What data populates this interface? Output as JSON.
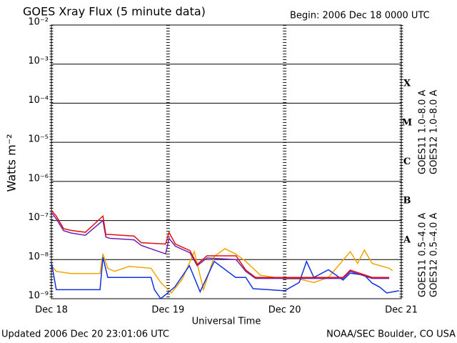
{
  "chart_data": {
    "type": "line",
    "title": "GOES Xray Flux (5 minute data)",
    "begin": "Begin:  2006 Dec 18 0000 UTC",
    "xlabel": "Universal Time",
    "ylabel": "Watts m⁻²",
    "updated": "Updated 2006 Dec 20 23:01:06 UTC",
    "source": "NOAA/SEC Boulder, CO USA",
    "log_y": true,
    "grid": true,
    "xlim": [
      0,
      72
    ],
    "xticks": [
      {
        "value": 0,
        "label": "Dec 18"
      },
      {
        "value": 24,
        "label": "Dec 19"
      },
      {
        "value": 48,
        "label": "Dec 20"
      },
      {
        "value": 72,
        "label": "Dec 21"
      }
    ],
    "ylim": [
      1e-09,
      0.01
    ],
    "yticks": [
      {
        "value": 1e-09,
        "label": "10⁻⁹"
      },
      {
        "value": 1e-08,
        "label": "10⁻⁸"
      },
      {
        "value": 1e-07,
        "label": "10⁻⁷"
      },
      {
        "value": 1e-06,
        "label": "10⁻⁶"
      },
      {
        "value": 1e-05,
        "label": "10⁻⁵"
      },
      {
        "value": 0.0001,
        "label": "10⁻⁴"
      },
      {
        "value": 0.001,
        "label": "10⁻³"
      },
      {
        "value": 0.01,
        "label": "10⁻²"
      }
    ],
    "flare_classes": [
      "X",
      "M",
      "C",
      "B",
      "A"
    ],
    "series": [
      {
        "name": "GOES11 0.5–4.0 A",
        "color": "#f5a400",
        "x": [
          0,
          1,
          4,
          10,
          10.6,
          11.6,
          13,
          16,
          20.5,
          22.5,
          24.7,
          26.9,
          29.4,
          31.3,
          33.5,
          35.7,
          37.9,
          40,
          43,
          48,
          51,
          54,
          57,
          61.5,
          63,
          64.4,
          66,
          69.5,
          70.2
        ],
        "values": [
          7e-09,
          5e-09,
          4.4e-09,
          4.4e-09,
          1.4e-08,
          6e-09,
          5e-09,
          6.7e-09,
          6e-09,
          2.6e-09,
          1.4e-09,
          3.1e-09,
          1.6e-08,
          1.7e-09,
          1.2e-08,
          1.9e-08,
          1.4e-08,
          9e-09,
          4e-09,
          3.2e-09,
          3.2e-09,
          2.6e-09,
          3.5e-09,
          1.6e-08,
          8e-09,
          1.75e-08,
          8e-09,
          6e-09,
          5.2e-09
        ]
      },
      {
        "name": "GOES12 0.5–4.0 A",
        "color": "#1030e0",
        "x": [
          0,
          1,
          10,
          10.6,
          11.6,
          20.5,
          21.2,
          22.5,
          25.4,
          28.4,
          30.6,
          33.5,
          37.9,
          40,
          41.5,
          48,
          51,
          52.5,
          54,
          57,
          60,
          61.5,
          64.4,
          66,
          67.5,
          69,
          71.5
        ],
        "values": [
          8.5e-09,
          1.7e-09,
          1.7e-09,
          1.15e-08,
          3.5e-09,
          3.5e-09,
          1.7e-09,
          1e-09,
          2e-09,
          7e-09,
          1.5e-09,
          9e-09,
          3.5e-09,
          3.5e-09,
          1.8e-09,
          1.6e-09,
          2.6e-09,
          9e-09,
          3.5e-09,
          5.5e-09,
          3e-09,
          4.5e-09,
          4e-09,
          2.5e-09,
          2e-09,
          1.4e-09,
          1.6e-09
        ]
      },
      {
        "name": "GOES11 1.0–8.0 A",
        "color": "#7020b0",
        "x": [
          0,
          1,
          2.5,
          4,
          7,
          10.6,
          11.2,
          12,
          17,
          18.5,
          23.5,
          24.2,
          25.5,
          28.5,
          30,
          32,
          38,
          40,
          42,
          60,
          61.5,
          66,
          69.5
        ],
        "values": [
          1.6e-07,
          1.1e-07,
          5.5e-08,
          4.8e-08,
          4.2e-08,
          1e-07,
          3.8e-08,
          3.5e-08,
          3.2e-08,
          2.3e-08,
          1.4e-08,
          3.5e-08,
          2.2e-08,
          1.5e-08,
          7e-09,
          1.1e-08,
          1e-08,
          5e-09,
          3.3e-09,
          3.3e-09,
          5e-09,
          3.3e-09,
          3.3e-09
        ]
      },
      {
        "name": "GOES12 1.0–8.0 A",
        "color": "#e01010",
        "x": [
          0,
          1,
          2.5,
          4,
          7,
          10.6,
          11.2,
          12,
          17,
          18.5,
          23.5,
          24.2,
          25.5,
          28.5,
          30,
          32,
          38,
          40,
          42,
          60,
          61.5,
          66,
          69.5
        ],
        "values": [
          1.8e-07,
          1.3e-07,
          6.2e-08,
          5.6e-08,
          5e-08,
          1.3e-07,
          4.4e-08,
          4.4e-08,
          4e-08,
          2.7e-08,
          2.5e-08,
          5e-08,
          2.5e-08,
          1.7e-08,
          7.5e-09,
          1.25e-08,
          1.25e-08,
          5.4e-09,
          3.5e-09,
          3.5e-09,
          5.4e-09,
          3.5e-09,
          3.5e-09
        ]
      }
    ]
  }
}
